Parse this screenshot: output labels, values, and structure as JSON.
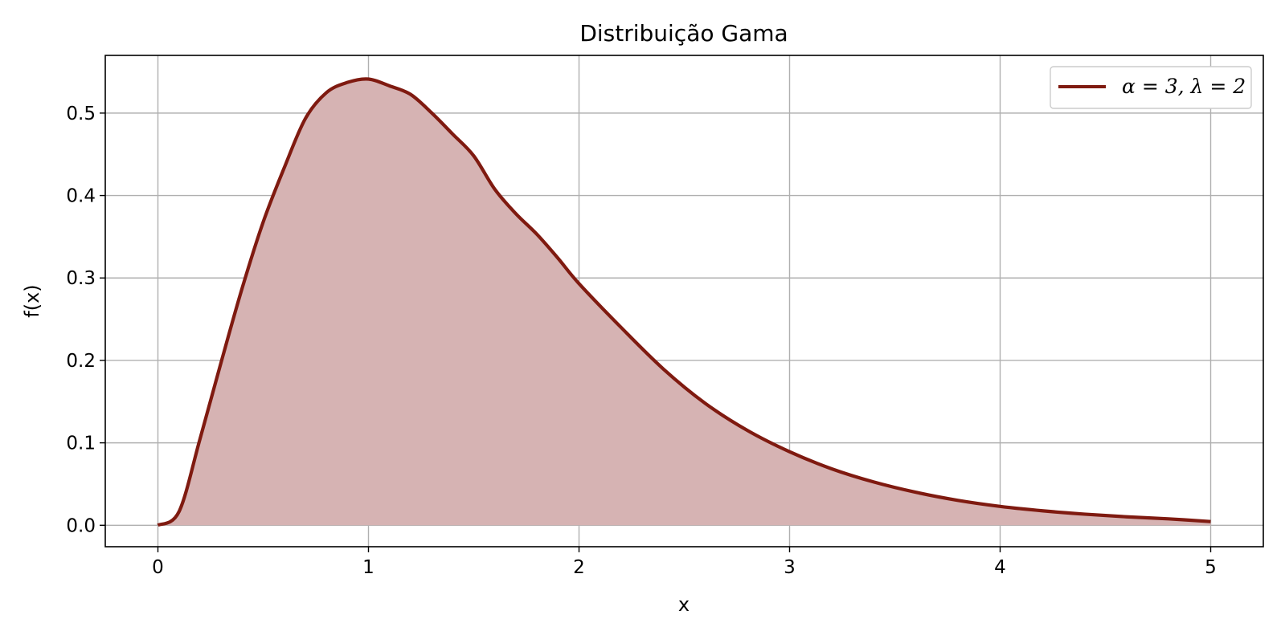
{
  "chart_data": {
    "type": "area",
    "title": "Distribuição Gama",
    "xlabel": "x",
    "ylabel": "f(x)",
    "xlim": [
      -0.25,
      5.25
    ],
    "ylim": [
      -0.026,
      0.57
    ],
    "xticks": [
      "0",
      "1",
      "2",
      "3",
      "4",
      "5"
    ],
    "yticks": [
      "0.0",
      "0.1",
      "0.2",
      "0.3",
      "0.4",
      "0.5"
    ],
    "grid": true,
    "legend_position": "top-right",
    "colors": {
      "line": "#7f1a10",
      "fill": "#d6b3b3",
      "grid": "#b0b0b0"
    },
    "series": [
      {
        "name": "α = 3, λ = 2",
        "x": [
          0,
          0.1,
          0.2,
          0.3,
          0.4,
          0.5,
          0.6,
          0.7,
          0.8,
          0.9,
          1.0,
          1.1,
          1.2,
          1.3,
          1.4,
          1.5,
          1.6,
          1.7,
          1.8,
          1.9,
          2.0,
          2.2,
          2.4,
          2.6,
          2.8,
          3.0,
          3.2,
          3.4,
          3.6,
          3.8,
          4.0,
          4.2,
          4.4,
          4.6,
          4.8,
          5.0
        ],
        "y": [
          0.0,
          0.0164,
          0.1048,
          0.1976,
          0.2876,
          0.3679,
          0.4337,
          0.4932,
          0.5248,
          0.5372,
          0.5413,
          0.533,
          0.5227,
          0.5003,
          0.4745,
          0.4481,
          0.4076,
          0.378,
          0.353,
          0.324,
          0.2931,
          0.2399,
          0.1897,
          0.1478,
          0.115,
          0.0892,
          0.0685,
          0.0525,
          0.04,
          0.0302,
          0.0229,
          0.0176,
          0.0135,
          0.0103,
          0.0078,
          0.0045
        ]
      }
    ]
  }
}
